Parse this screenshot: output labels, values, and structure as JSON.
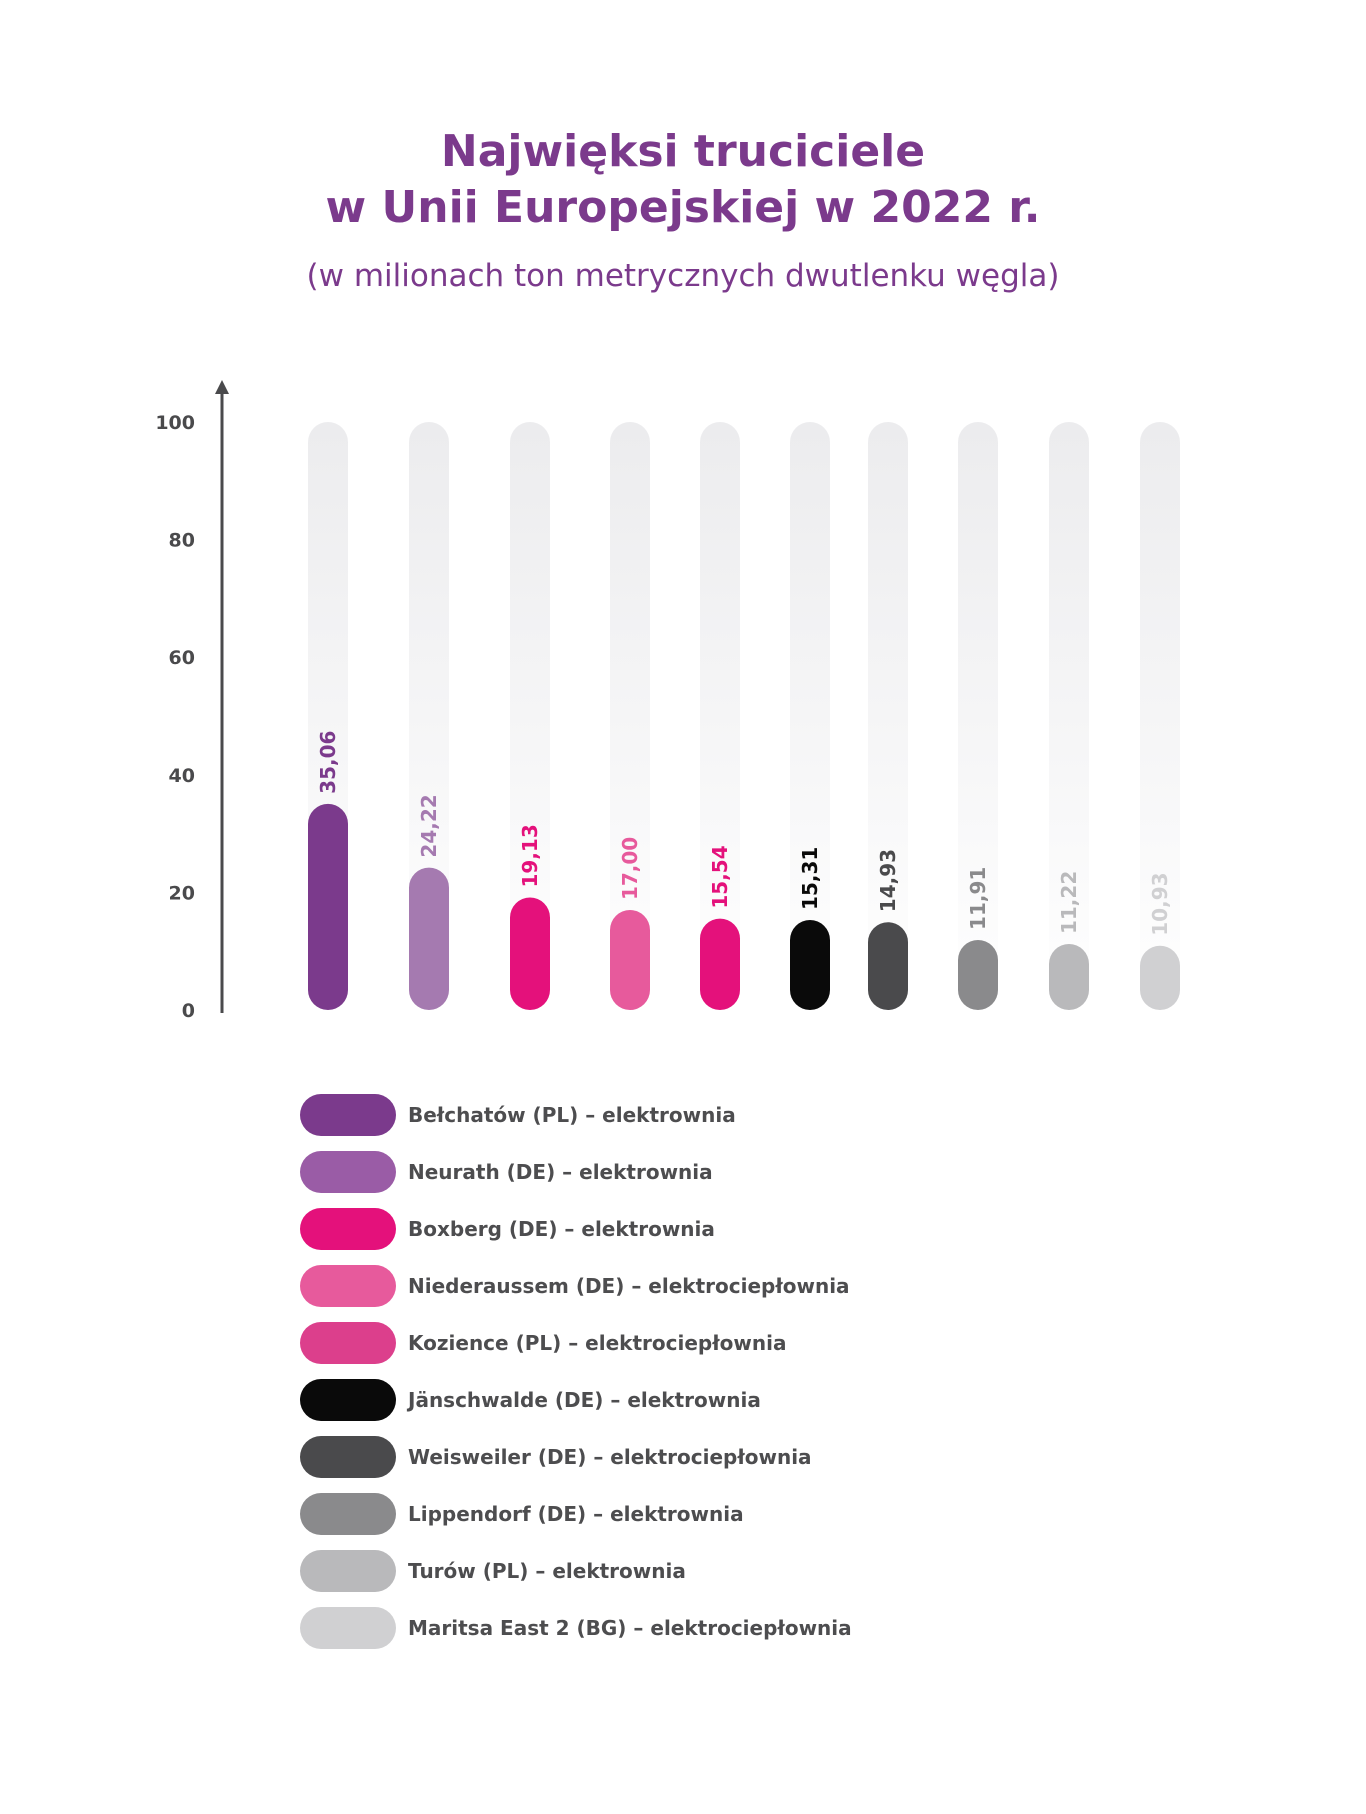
{
  "chart_data": {
    "type": "bar",
    "title_lines": [
      "Najwięksi truciciele",
      "w Unii Europejskiej w 2022 r."
    ],
    "subtitle": "(w milionach ton metrycznych dwutlenku węgla)",
    "ylim": [
      0,
      100
    ],
    "yticks": [
      0,
      20,
      40,
      60,
      80,
      100
    ],
    "categories": [
      "Bełchatów (PL)  – elektrownia",
      "Neurath (DE) – elektrownia",
      "Boxberg (DE) – elektrownia",
      "Niederaussem (DE) – elektrociepłownia",
      "Kozience (PL) – elektrociepłownia",
      "Jänschwalde (DE) – elektrownia",
      "Weisweiler (DE)  – elektrociepłownia",
      "Lippendorf (DE)  – elektrownia",
      "Turów (PL) – elektrownia",
      "Maritsa East 2 (BG) – elektrociepłownia"
    ],
    "values": [
      35.06,
      24.22,
      19.13,
      17.0,
      15.54,
      15.31,
      14.93,
      11.91,
      11.22,
      10.93
    ],
    "value_labels": [
      "35,06",
      "24,22",
      "19,13",
      "17,00",
      "15,54",
      "15,31",
      "14,93",
      "11,91",
      "11,22",
      "10,93"
    ],
    "bar_colors": [
      "#7b3a8c",
      "#a57ab0",
      "#e4117b",
      "#e75a9c",
      "#e4117b",
      "#0a0a0a",
      "#4a4a4c",
      "#8a8a8c",
      "#b9b9bb",
      "#d0d0d2"
    ],
    "label_colors": [
      "#7b3a8c",
      "#a57ab0",
      "#e4117b",
      "#e75a9c",
      "#e4117b",
      "#0a0a0a",
      "#4a4a4c",
      "#8a8a8c",
      "#b9b9bb",
      "#d0d0d2"
    ],
    "legend_colors": [
      "#7b3a8c",
      "#9a5ca6",
      "#e4117b",
      "#e75a9c",
      "#dc3f8c",
      "#0a0a0a",
      "#4a4a4c",
      "#8a8a8c",
      "#b9b9bb",
      "#d0d0d2"
    ],
    "legend_placement": "bottom",
    "grid": false
  }
}
